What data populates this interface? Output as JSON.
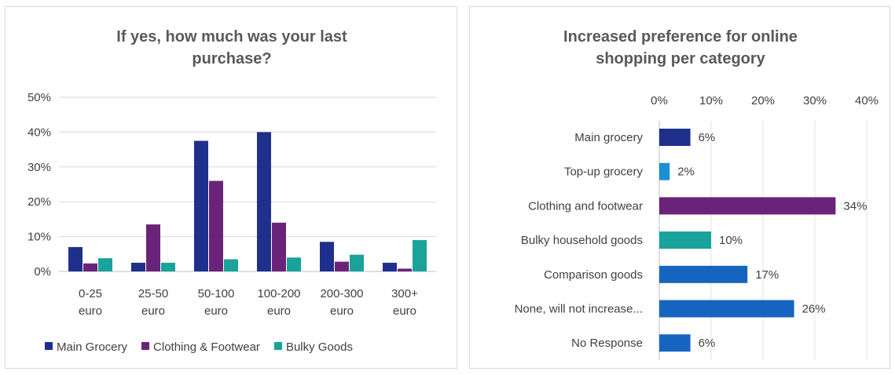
{
  "charts": {
    "left": {
      "type": "bar",
      "title_lines": [
        "If yes, how much was your last",
        "purchase?"
      ],
      "categories": [
        [
          "0-25",
          "euro"
        ],
        [
          "25-50",
          "euro"
        ],
        [
          "50-100",
          "euro"
        ],
        [
          "100-200",
          "euro"
        ],
        [
          "200-300",
          "euro"
        ],
        [
          "300+",
          "euro"
        ]
      ],
      "series": [
        {
          "name": "Main Grocery",
          "color": "#1f2f8c",
          "values": [
            7,
            2.5,
            37.5,
            40,
            8.5,
            2.5
          ]
        },
        {
          "name": "Clothing & Footwear",
          "color": "#6b237a",
          "values": [
            2.3,
            13.5,
            26,
            14,
            2.8,
            0.8
          ]
        },
        {
          "name": "Bulky Goods",
          "color": "#1aa39a",
          "values": [
            3.8,
            2.5,
            3.5,
            4,
            4.8,
            9
          ]
        }
      ],
      "yticks": [
        "0%",
        "10%",
        "20%",
        "30%",
        "40%",
        "50%"
      ],
      "ylim": [
        0,
        50
      ],
      "grid": true,
      "legend": "bottom"
    },
    "right": {
      "type": "bar",
      "orientation": "horizontal",
      "title_lines": [
        "Increased preference for online",
        "shopping per category"
      ],
      "categories": [
        "Main grocery",
        "Top-up grocery",
        "Clothing and footwear",
        "Bulky household goods",
        "Comparison goods",
        "None, will not increase...",
        "No Response"
      ],
      "values": [
        6,
        2,
        34,
        10,
        17,
        26,
        6
      ],
      "labels": [
        "6%",
        "2%",
        "34%",
        "10%",
        "17%",
        "26%",
        "6%"
      ],
      "colors": [
        "#1f2f8c",
        "#1a8fd6",
        "#6b237a",
        "#1aa39a",
        "#1565c0",
        "#1565c0",
        "#1565c0"
      ],
      "xticks": [
        "0%",
        "10%",
        "20%",
        "30%",
        "40%"
      ],
      "xlim": [
        0,
        40
      ],
      "grid": true
    }
  }
}
